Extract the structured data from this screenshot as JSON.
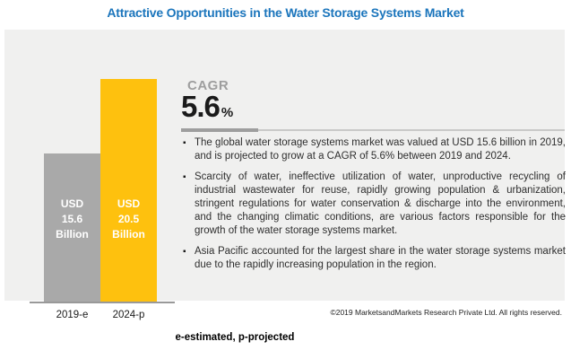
{
  "header": {
    "title": "Attractive Opportunities in the Water Storage Systems Market"
  },
  "cagr": {
    "label": "CAGR",
    "value": "5.6",
    "unit": "%"
  },
  "chart": {
    "bars": [
      {
        "name": "2019-e",
        "value_label": "USD\n15.6\nBillion",
        "color": "#A9A9A9"
      },
      {
        "name": "2024-p",
        "value_label": "USD\n20.5\nBillion",
        "color": "#FEC10E"
      }
    ]
  },
  "bullets": [
    {
      "icon": "▪",
      "text": "The global water storage systems market was valued at USD 15.6 billion in 2019, and is projected to grow at a CAGR of 5.6% between 2019 and 2024."
    },
    {
      "icon": "▪",
      "text": "Scarcity of water, ineffective utilization of water, unproductive recycling of industrial wastewater for reuse, rapidly growing population & urbanization, stringent regulations for water conservation & discharge into the environment, and the changing climatic conditions, are various factors responsible for the growth of the water storage systems market."
    },
    {
      "icon": "▪",
      "text": "Asia Pacific accounted for the largest share in the water storage systems market due to the rapidly increasing population in the region."
    }
  ],
  "footer": {
    "copyright": "©2019 MarketsandMarkets Research Private Ltd. All rights reserved.",
    "footnote": "e-estimated, p-projected"
  },
  "colors": {
    "title_blue": "#1B75BC",
    "panel_bg": "#F0F0EF",
    "bar_gray": "#A9A9A9",
    "bar_yellow": "#FEC10E",
    "cagr_gray": "#9E9E9E"
  },
  "chart_data": {
    "type": "bar",
    "categories": [
      "2019-e",
      "2024-p"
    ],
    "values": [
      15.6,
      20.5
    ],
    "unit": "USD Billion",
    "data_labels": [
      "USD 15.6 Billion",
      "USD 20.5 Billion"
    ],
    "bar_colors": [
      "#A9A9A9",
      "#FEC10E"
    ],
    "title": "Attractive Opportunities in the Water Storage Systems Market",
    "annotations": [
      "CAGR 5.6%"
    ],
    "xlabel": "",
    "ylabel": "",
    "legend": "none",
    "grid": false,
    "notes": "e-estimated, p-projected"
  }
}
